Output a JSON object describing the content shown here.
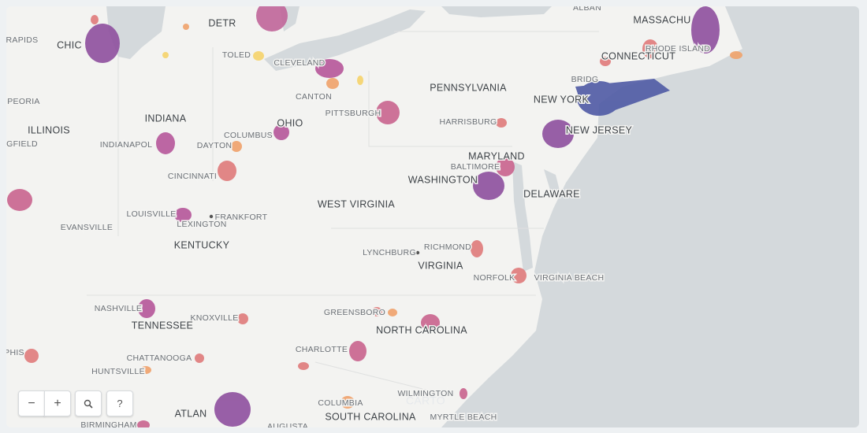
{
  "map": {
    "labels": [
      "RAPIDS",
      "CHIC",
      "DETR",
      "TOLED",
      "CLEVELAND",
      "ALBAN",
      "MASSACHU",
      "CONNECTICUT",
      "RHODE ISLAND",
      "PEORIA",
      "INDIANA",
      "ILLINOIS",
      "GFIELD",
      "INDIANAPOL",
      "DAYTON",
      "COLUMBUS",
      "OHIO",
      "CANTON",
      "PITTSBURGH",
      "PENNSYLVANIA",
      "HARRISBURG",
      "NEW YORK",
      "NEW JERSEY",
      "BRIDG",
      "MARYLAND",
      "BALTIMORE",
      "WASHINGTON",
      "DELAWARE",
      "CINCINNATI",
      "LOUISVILLE",
      "FRANKFORT",
      "LEXINGTON",
      "EVANSVILLE",
      "KENTUCKY",
      "WEST VIRGINIA",
      "LYNCHBURG",
      "RICHMOND",
      "VIRGINIA",
      "NORFOLK",
      "VIRGINIA BEACH",
      "NASHVILLE",
      "TENNESSEE",
      "KNOXVILLE",
      "GREENSBORO",
      "NORTH CAROLINA",
      "CHARLOTTE",
      "CHATTANOOGA",
      "HUNTSVILLE",
      "PHIS",
      "WILMINGTON",
      "COLUMBIA",
      "SOUTH CAROLINA",
      "MYRTLE BEACH",
      "ATLAN",
      "BIRMINGHAM",
      "AUGUSTA",
      "CARTO"
    ],
    "controls": {
      "zoom_out": "−",
      "zoom_in": "+",
      "help": "?"
    }
  }
}
